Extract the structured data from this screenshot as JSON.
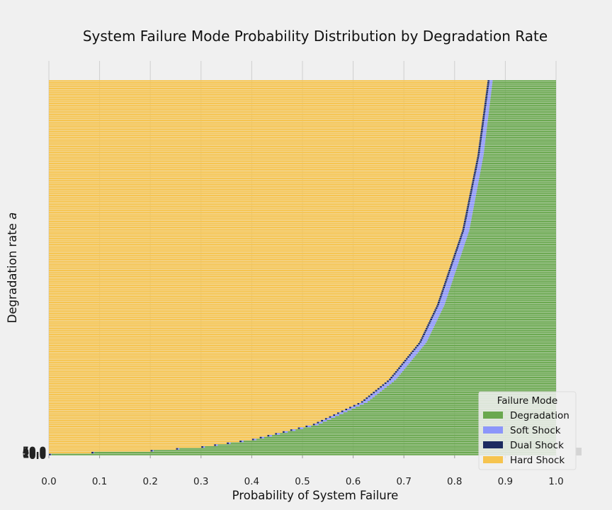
{
  "chart_data": {
    "type": "bar",
    "orientation": "horizontal",
    "stacked": true,
    "title": "System Failure Mode Probability Distribution by Degradation Rate",
    "xlabel": "Probability of System Failure",
    "ylabel": "Degradation rate a",
    "xlim": [
      0.0,
      1.0
    ],
    "xticks": [
      "0.0",
      "0.1",
      "0.2",
      "0.3",
      "0.4",
      "0.5",
      "0.6",
      "0.7",
      "0.8",
      "0.9",
      "1.0"
    ],
    "y_tick_labels_visible": [
      "0.0",
      "10.0",
      "20.0",
      "30.0",
      "40.0",
      "50.0"
    ],
    "y_range": [
      0,
      5000
    ],
    "n_bars": 200,
    "grid": true,
    "legend": {
      "title": "Failure Mode",
      "placement": "lower-right",
      "entries": [
        "Degradation",
        "Soft Shock",
        "Dual Shock",
        "Hard Shock"
      ]
    },
    "colors": {
      "Degradation": "#6aa84f",
      "Soft Shock": "#8c96fa",
      "Dual Shock": "#1c2a60",
      "Hard Shock": "#f6c44f"
    },
    "series_order_left_to_right": [
      "Hard Shock",
      "Dual Shock",
      "Soft Shock",
      "Degradation"
    ],
    "hard_shock_profile": {
      "a": [
        0,
        10,
        20,
        50,
        100,
        200,
        400,
        700,
        1000,
        1500,
        2000,
        3000,
        4000,
        5000
      ],
      "values": [
        0.0,
        0.03,
        0.06,
        0.2,
        0.3,
        0.4,
        0.52,
        0.615,
        0.67,
        0.73,
        0.765,
        0.815,
        0.845,
        0.865
      ]
    },
    "dual_shock_width": 0.004,
    "soft_shock_profile": {
      "a": [
        0,
        100,
        300,
        500,
        1000,
        2000,
        3000,
        4000,
        5000
      ],
      "values": [
        0.001,
        0.003,
        0.006,
        0.008,
        0.01,
        0.011,
        0.01,
        0.008,
        0.006
      ]
    }
  }
}
